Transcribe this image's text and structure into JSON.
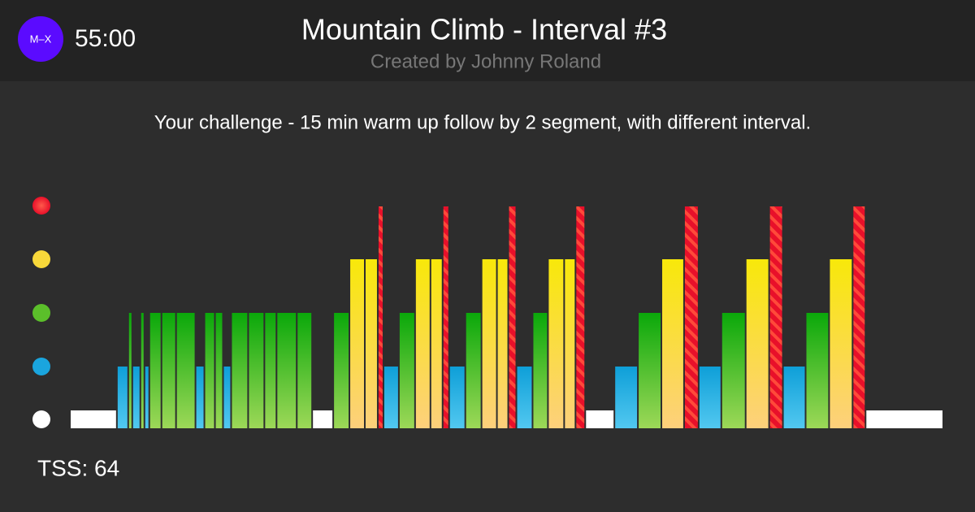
{
  "header": {
    "logo": "M–X",
    "duration": "55:00",
    "title": "Mountain Climb - Interval #3",
    "subtitle": "Created by Johnny Roland"
  },
  "description": "Your challenge - 15 min warm up follow by 2 segment, with different interval.",
  "tss": "TSS: 64",
  "segments": [
    {
      "zone": 1,
      "duration": 168
    },
    {
      "zone": 2,
      "duration": 36
    },
    {
      "zone": 3,
      "duration": 9
    },
    {
      "zone": 2,
      "duration": 24
    },
    {
      "zone": 3,
      "duration": 9
    },
    {
      "zone": 2,
      "duration": 12
    },
    {
      "zone": 3,
      "duration": 39
    },
    {
      "zone": 3,
      "duration": 48
    },
    {
      "zone": 3,
      "duration": 66
    },
    {
      "zone": 2,
      "duration": 27
    },
    {
      "zone": 3,
      "duration": 33
    },
    {
      "zone": 3,
      "duration": 24
    },
    {
      "zone": 2,
      "duration": 24
    },
    {
      "zone": 3,
      "duration": 57
    },
    {
      "zone": 3,
      "duration": 54
    },
    {
      "zone": 3,
      "duration": 39
    },
    {
      "zone": 3,
      "duration": 69
    },
    {
      "zone": 3,
      "duration": 51
    },
    {
      "zone": 1,
      "duration": 72
    },
    {
      "zone": 3,
      "duration": 54
    },
    {
      "zone": 4,
      "duration": 51
    },
    {
      "zone": 4,
      "duration": 42
    },
    {
      "zone": 5,
      "duration": 15
    },
    {
      "zone": 2,
      "duration": 51
    },
    {
      "zone": 3,
      "duration": 54
    },
    {
      "zone": 4,
      "duration": 51
    },
    {
      "zone": 4,
      "duration": 39
    },
    {
      "zone": 5,
      "duration": 18
    },
    {
      "zone": 2,
      "duration": 54
    },
    {
      "zone": 3,
      "duration": 54
    },
    {
      "zone": 4,
      "duration": 51
    },
    {
      "zone": 4,
      "duration": 36
    },
    {
      "zone": 5,
      "duration": 24
    },
    {
      "zone": 2,
      "duration": 54
    },
    {
      "zone": 3,
      "duration": 51
    },
    {
      "zone": 4,
      "duration": 54
    },
    {
      "zone": 4,
      "duration": 36
    },
    {
      "zone": 5,
      "duration": 30
    },
    {
      "zone": 1,
      "duration": 102
    },
    {
      "zone": 2,
      "duration": 81
    },
    {
      "zone": 3,
      "duration": 81
    },
    {
      "zone": 4,
      "duration": 78
    },
    {
      "zone": 5,
      "duration": 48
    },
    {
      "zone": 2,
      "duration": 78
    },
    {
      "zone": 3,
      "duration": 84
    },
    {
      "zone": 4,
      "duration": 81
    },
    {
      "zone": 5,
      "duration": 45
    },
    {
      "zone": 2,
      "duration": 78
    },
    {
      "zone": 3,
      "duration": 81
    },
    {
      "zone": 4,
      "duration": 81
    },
    {
      "zone": 5,
      "duration": 42
    },
    {
      "zone": 1,
      "duration": 282
    }
  ]
}
